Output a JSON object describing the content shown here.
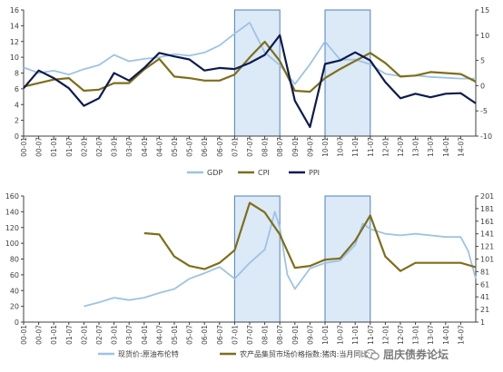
{
  "chart_data": [
    {
      "type": "line",
      "x_ticks": [
        "00-01",
        "00-07",
        "01-01",
        "01-07",
        "02-01",
        "02-07",
        "03-01",
        "03-07",
        "04-01",
        "04-07",
        "05-01",
        "05-07",
        "06-01",
        "06-07",
        "07-01",
        "07-07",
        "08-01",
        "08-07",
        "09-01",
        "09-07",
        "10-01",
        "10-07",
        "11-01",
        "11-07",
        "12-01",
        "12-07",
        "13-01",
        "13-07",
        "14-01",
        "14-07"
      ],
      "left_axis": {
        "ylim": [
          0,
          16
        ],
        "ticks": [
          "0",
          "2",
          "4",
          "6",
          "8",
          "10",
          "12",
          "14",
          "16"
        ]
      },
      "right_axis": {
        "ylim": [
          -10,
          15
        ],
        "ticks": [
          "-10",
          "-5",
          "0",
          "5",
          "10",
          "15"
        ]
      },
      "shaded_periods": [
        [
          "07-01",
          "08-07"
        ],
        [
          "10-01",
          "11-07"
        ]
      ],
      "legend_position": "bottom-center",
      "series": [
        {
          "name": "GDP",
          "axis": "left",
          "color": "#9dc3e6",
          "x": [
            "00-01",
            "00-07",
            "01-01",
            "01-07",
            "02-01",
            "02-07",
            "03-01",
            "03-07",
            "04-01",
            "04-07",
            "05-01",
            "05-07",
            "06-01",
            "06-07",
            "07-01",
            "07-07",
            "08-01",
            "08-07",
            "09-01",
            "09-07",
            "10-01",
            "10-07",
            "11-01",
            "11-07",
            "12-01",
            "12-07",
            "13-01",
            "13-07",
            "14-01",
            "14-07",
            "15-01"
          ],
          "values": [
            8.7,
            8.0,
            8.3,
            7.8,
            8.5,
            9.0,
            10.3,
            9.5,
            9.8,
            10.0,
            10.4,
            10.2,
            10.6,
            11.5,
            13.0,
            14.4,
            10.6,
            9.0,
            6.6,
            9.1,
            12.0,
            9.7,
            9.7,
            9.1,
            7.9,
            7.6,
            7.7,
            7.5,
            7.4,
            7.3,
            7.3
          ]
        },
        {
          "name": "CPI",
          "axis": "right",
          "color": "#7f6e1a",
          "x": [
            "00-01",
            "00-07",
            "01-01",
            "01-07",
            "02-01",
            "02-07",
            "03-01",
            "03-07",
            "04-01",
            "04-07",
            "05-01",
            "05-07",
            "06-01",
            "06-07",
            "07-01",
            "07-07",
            "08-01",
            "08-07",
            "09-01",
            "09-07",
            "10-01",
            "10-07",
            "11-01",
            "11-07",
            "12-01",
            "12-07",
            "13-01",
            "13-07",
            "14-01",
            "14-07",
            "15-01"
          ],
          "values": [
            -0.2,
            0.5,
            1.2,
            1.5,
            -1.0,
            -0.8,
            0.5,
            0.5,
            3.2,
            5.3,
            1.8,
            1.5,
            1.0,
            1.0,
            2.2,
            5.6,
            8.7,
            4.9,
            -1.0,
            -1.2,
            1.5,
            3.3,
            4.9,
            6.5,
            4.5,
            1.8,
            2.0,
            2.7,
            2.5,
            2.3,
            0.8
          ]
        },
        {
          "name": "PPI",
          "axis": "right",
          "color": "#0d1b4f",
          "x": [
            "00-01",
            "00-07",
            "01-01",
            "01-07",
            "02-01",
            "02-07",
            "03-01",
            "03-07",
            "04-01",
            "04-07",
            "05-01",
            "05-07",
            "06-01",
            "06-07",
            "07-01",
            "07-07",
            "08-01",
            "08-07",
            "09-01",
            "09-07",
            "10-01",
            "10-07",
            "11-01",
            "11-07",
            "12-01",
            "12-07",
            "13-01",
            "13-07",
            "14-01",
            "14-07",
            "15-01"
          ],
          "values": [
            -0.5,
            3.0,
            1.5,
            -0.5,
            -4.0,
            -2.5,
            2.5,
            1.0,
            3.5,
            6.5,
            5.8,
            5.2,
            3.0,
            3.5,
            3.3,
            4.5,
            6.1,
            10.0,
            -3.0,
            -8.2,
            4.3,
            5.0,
            6.6,
            5.0,
            0.7,
            -2.5,
            -1.6,
            -2.3,
            -1.6,
            -1.5,
            -3.5
          ]
        }
      ]
    },
    {
      "type": "line",
      "x_ticks": [
        "00-01",
        "00-07",
        "01-01",
        "01-07",
        "02-01",
        "02-07",
        "03-01",
        "03-07",
        "04-01",
        "04-07",
        "05-01",
        "05-07",
        "06-01",
        "06-07",
        "07-01",
        "07-07",
        "08-01",
        "08-07",
        "09-01",
        "09-07",
        "10-01",
        "10-07",
        "11-01",
        "11-07",
        "12-01",
        "12-07",
        "13-01",
        "13-07",
        "14-01",
        "14-07"
      ],
      "left_axis": {
        "ylim": [
          0,
          160
        ],
        "ticks": [
          "0",
          "20",
          "40",
          "60",
          "80",
          "100",
          "120",
          "140",
          "160"
        ]
      },
      "right_axis": {
        "ylim": [
          1,
          201
        ],
        "ticks": [
          "1",
          "21",
          "41",
          "61",
          "81",
          "101",
          "121",
          "141",
          "161",
          "181",
          "201"
        ]
      },
      "shaded_periods": [
        [
          "07-01",
          "08-07"
        ],
        [
          "10-01",
          "11-07"
        ]
      ],
      "legend_position": "bottom-center",
      "series": [
        {
          "name": "现货价:原油布伦特",
          "axis": "left",
          "color": "#9dc3e6",
          "x": [
            "02-01",
            "02-07",
            "03-01",
            "03-07",
            "04-01",
            "04-07",
            "05-01",
            "05-07",
            "06-01",
            "06-07",
            "07-01",
            "07-07",
            "08-01",
            "08-05",
            "08-07",
            "08-10",
            "09-01",
            "09-07",
            "10-01",
            "10-07",
            "11-01",
            "11-04",
            "11-07",
            "12-01",
            "12-07",
            "13-01",
            "13-07",
            "14-01",
            "14-07",
            "14-10",
            "15-01"
          ],
          "values": [
            20,
            25,
            31,
            28,
            31,
            37,
            42,
            55,
            62,
            70,
            55,
            75,
            92,
            140,
            120,
            60,
            42,
            68,
            75,
            78,
            98,
            125,
            118,
            112,
            110,
            112,
            110,
            108,
            108,
            90,
            55
          ]
        },
        {
          "name": "农产品集贸市场价格指数:猪肉:当月同比",
          "axis": "right",
          "color": "#7f6e1a",
          "x": [
            "04-01",
            "04-07",
            "05-01",
            "05-07",
            "06-01",
            "06-07",
            "07-01",
            "07-07",
            "08-01",
            "08-07",
            "09-01",
            "09-07",
            "10-01",
            "10-07",
            "11-01",
            "11-07",
            "12-01",
            "12-07",
            "13-01",
            "13-07",
            "14-01",
            "14-07",
            "15-01"
          ],
          "values": [
            142,
            140,
            105,
            90,
            85,
            95,
            115,
            190,
            175,
            140,
            87,
            90,
            100,
            102,
            130,
            170,
            105,
            82,
            95,
            95,
            95,
            95,
            88
          ]
        }
      ]
    }
  ],
  "watermark": {
    "text": "屈庆债券论坛"
  }
}
